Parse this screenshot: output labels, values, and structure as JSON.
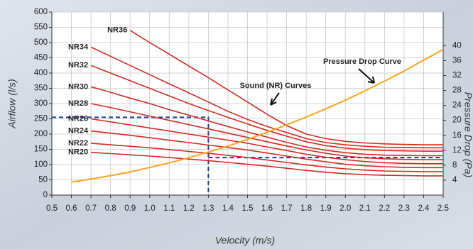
{
  "chart_data": {
    "type": "line",
    "x_label": "Velocity (m/s)",
    "y_label": "Airflow (l/s)",
    "y2_label": "Pressure Drop (Pa)",
    "annotation": "Sound (NR) Curves",
    "x": [
      0.6,
      0.7,
      0.8,
      0.9,
      1.0,
      1.1,
      1.2,
      1.3,
      1.4,
      1.5,
      1.6,
      1.7,
      1.8,
      1.9,
      2.0,
      2.1,
      2.2,
      2.3,
      2.4,
      2.5
    ],
    "series": [
      {
        "name": "NR36",
        "color": "#d42a22",
        "values": [
          null,
          null,
          null,
          540,
          500,
          462,
          423,
          385,
          345,
          305,
          265,
          228,
          200,
          185,
          176,
          171,
          168,
          166,
          165,
          165
        ]
      },
      {
        "name": "NR34",
        "color": "#d42a22",
        "values": [
          null,
          485,
          455,
          425,
          395,
          365,
          335,
          305,
          275,
          248,
          225,
          205,
          185,
          172,
          165,
          160,
          157,
          156,
          155,
          155
        ]
      },
      {
        "name": "NR32",
        "color": "#d42a22",
        "values": [
          null,
          425,
          400,
          375,
          350,
          325,
          300,
          277,
          255,
          233,
          212,
          193,
          175,
          162,
          154,
          149,
          146,
          145,
          144,
          144
        ]
      },
      {
        "name": "NR30",
        "color": "#d42a22",
        "values": [
          null,
          355,
          337,
          318,
          300,
          280,
          262,
          243,
          225,
          207,
          190,
          173,
          158,
          147,
          139,
          134,
          131,
          130,
          129,
          129
        ]
      },
      {
        "name": "NR28",
        "color": "#d42a22",
        "values": [
          null,
          300,
          287,
          273,
          259,
          245,
          231,
          217,
          203,
          189,
          175,
          161,
          148,
          137,
          128,
          122,
          119,
          117,
          116,
          116
        ]
      },
      {
        "name": "NR26",
        "color": "#d42a22",
        "values": [
          null,
          250,
          240,
          230,
          220,
          210,
          200,
          190,
          180,
          170,
          158,
          146,
          134,
          124,
          116,
          110,
          106,
          104,
          103,
          103
        ]
      },
      {
        "name": "NR24",
        "color": "#d42a22",
        "values": [
          null,
          210,
          203,
          196,
          188,
          180,
          172,
          164,
          156,
          148,
          138,
          128,
          118,
          109,
          101,
          96,
          93,
          91,
          90,
          90
        ]
      },
      {
        "name": "NR22",
        "color": "#d42a22",
        "values": [
          null,
          170,
          165,
          160,
          155,
          149,
          143,
          137,
          130,
          123,
          115,
          107,
          99,
          92,
          86,
          82,
          79,
          78,
          77,
          77
        ]
      },
      {
        "name": "NR20",
        "color": "#d42a22",
        "values": [
          null,
          140,
          136,
          132,
          128,
          123,
          118,
          113,
          107,
          101,
          95,
          88,
          81,
          75,
          70,
          67,
          65,
          64,
          63,
          63
        ]
      },
      {
        "name": "Pressure Drop Curve",
        "color": "#f5a623",
        "axis": "y2",
        "values": [
          3.5,
          4.3,
          5.2,
          6.2,
          7.4,
          8.6,
          10.0,
          11.5,
          13.1,
          14.9,
          16.8,
          18.8,
          20.9,
          23.1,
          25.4,
          27.9,
          30.5,
          33.2,
          36.1,
          39.0
        ]
      }
    ],
    "guides": {
      "x": 1.3,
      "y_left": 255,
      "y_right": 123,
      "color": "#1a3fa0"
    },
    "xlim": [
      0.5,
      2.5
    ],
    "xticks": [
      0.5,
      0.6,
      0.7,
      0.8,
      0.9,
      {
        "value": 1,
        "label": "1.0"
      },
      1.1,
      1.2,
      1.3,
      1.4,
      1.5,
      1.6,
      1.7,
      1.8,
      1.9,
      {
        "value": 2,
        "label": "2.0"
      },
      2.1,
      2.2,
      2.3,
      2.4,
      2.5
    ],
    "ylim": [
      0,
      600
    ],
    "yticks": [
      0,
      50,
      100,
      150,
      200,
      250,
      300,
      350,
      400,
      450,
      500,
      550,
      600
    ],
    "y2lim": [
      0,
      49
    ],
    "y2ticks": [
      4,
      8,
      12,
      16,
      20,
      24,
      28,
      32,
      36,
      40
    ],
    "grid": true
  }
}
